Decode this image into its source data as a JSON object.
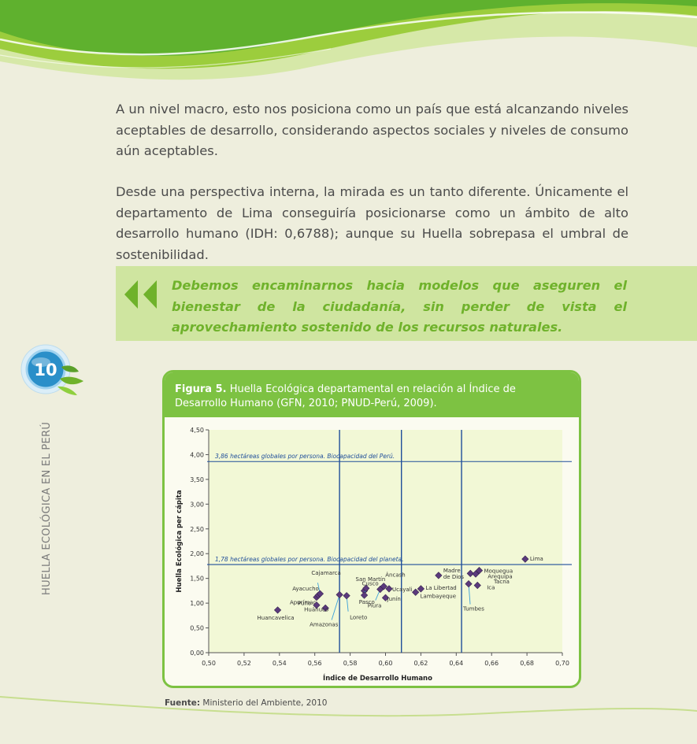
{
  "paragraphs": {
    "p1": "A un nivel macro, esto nos posiciona como un país que está alcanzando niveles aceptables de desarrollo, considerando aspectos sociales y niveles de consumo aún aceptables.",
    "p2": "Desde una perspectiva interna, la mirada es un tanto diferente. Únicamente el departamento de Lima conseguiría posicionarse como un ámbito de alto desarrollo humano (IDH: 0,6788); aunque su Huella sobrepasa el umbral de sostenibilidad."
  },
  "quote": "Debemos encaminarnos hacia modelos que aseguren el bienestar de la ciudadanía, sin perder de vista el aprovechamiento sostenido de los recursos naturales.",
  "page_number": "10",
  "side_label": "HUELLA ECOLÓGICA EN EL PERÚ",
  "figure": {
    "label": "Figura 5.",
    "caption": "Huella Ecológica departamental en relación al Índice de Desarrollo Humano (GFN, 2010; PNUD-Perú, 2009)."
  },
  "source": {
    "label": "Fuente:",
    "text": "Ministerio del Ambiente, 2010"
  },
  "colors": {
    "accent_green": "#7dc242",
    "quote_text": "#6fb22b",
    "line_blue": "#1f4e9a",
    "point_purple": "#5b3a7c"
  },
  "chart_data": {
    "type": "scatter",
    "xlabel": "Índice de Desarrollo Humano",
    "ylabel": "Huella Ecológica per cápita",
    "xlim": [
      0.5,
      0.7
    ],
    "ylim": [
      0,
      4.5
    ],
    "x_ticks": [
      "0,50",
      "0,52",
      "0,54",
      "0,56",
      "0,58",
      "0,60",
      "0,62",
      "0,64",
      "0,66",
      "0,68",
      "0,70"
    ],
    "y_ticks": [
      "0,00",
      "0,50",
      "1,00",
      "1,50",
      "2,00",
      "2,50",
      "3,00",
      "3,50",
      "4,00",
      "4,50"
    ],
    "grid": false,
    "points": [
      {
        "name": "Huancavelica",
        "x": 0.539,
        "y": 0.86
      },
      {
        "name": "Apurímac",
        "x": 0.561,
        "y": 1.12
      },
      {
        "name": "Ayacucho",
        "x": 0.562,
        "y": 1.16
      },
      {
        "name": "Puno",
        "x": 0.561,
        "y": 0.96
      },
      {
        "name": "Huánuco",
        "x": 0.566,
        "y": 0.9
      },
      {
        "name": "Cajamarca",
        "x": 0.563,
        "y": 1.19
      },
      {
        "name": "Amazonas",
        "x": 0.574,
        "y": 1.17
      },
      {
        "name": "Loreto",
        "x": 0.578,
        "y": 1.15
      },
      {
        "name": "Cusco",
        "x": 0.588,
        "y": 1.25
      },
      {
        "name": "Pasco",
        "x": 0.589,
        "y": 1.3
      },
      {
        "name": "San Martín",
        "x": 0.588,
        "y": 1.16
      },
      {
        "name": "Piura",
        "x": 0.597,
        "y": 1.28
      },
      {
        "name": "Áncash",
        "x": 0.599,
        "y": 1.34
      },
      {
        "name": "Junín",
        "x": 0.6,
        "y": 1.11
      },
      {
        "name": "Ucayali",
        "x": 0.602,
        "y": 1.29
      },
      {
        "name": "Lambayeque",
        "x": 0.617,
        "y": 1.22
      },
      {
        "name": "La Libertad",
        "x": 0.62,
        "y": 1.29
      },
      {
        "name": "Madre de Dios",
        "x": 0.63,
        "y": 1.56
      },
      {
        "name": "Tumbes",
        "x": 0.647,
        "y": 1.39
      },
      {
        "name": "Arequipa",
        "x": 0.648,
        "y": 1.6
      },
      {
        "name": "Ica",
        "x": 0.652,
        "y": 1.36
      },
      {
        "name": "Tacna",
        "x": 0.651,
        "y": 1.59
      },
      {
        "name": "Moquegua",
        "x": 0.653,
        "y": 1.66
      },
      {
        "name": "Lima",
        "x": 0.679,
        "y": 1.89
      }
    ],
    "reference_lines": {
      "horizontal": [
        {
          "y": 3.86,
          "label": "3,86 hectáreas globales por persona. Biocapacidad del Perú."
        },
        {
          "y": 1.78,
          "label": "1,78 hectáreas globales por persona. Biocapacidad del planeta."
        }
      ],
      "vertical": [
        0.574,
        0.609,
        0.643
      ]
    }
  }
}
